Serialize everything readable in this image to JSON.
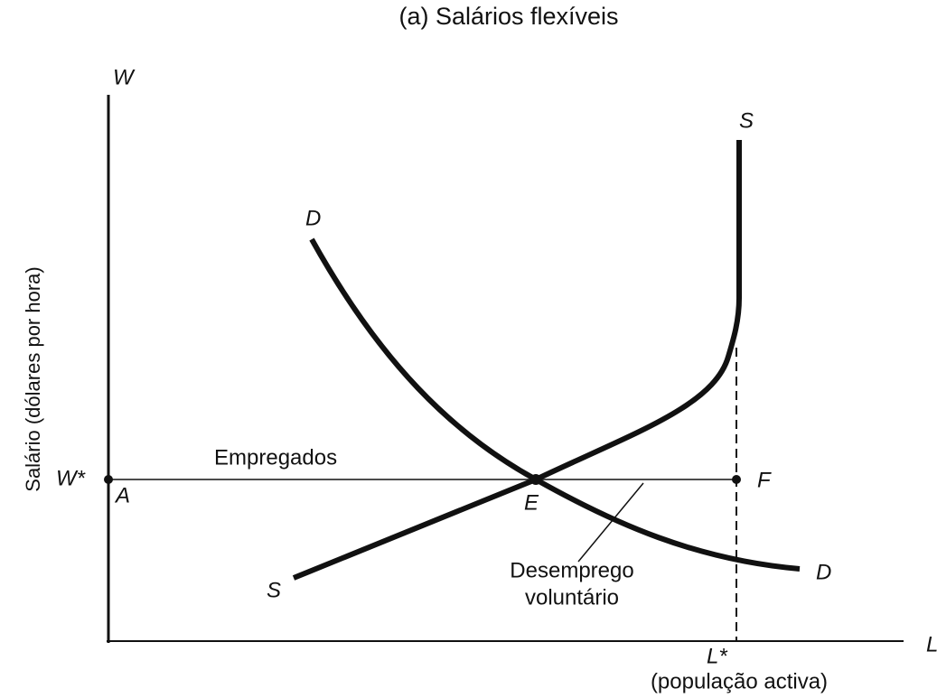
{
  "title": "(a) Salários flexíveis",
  "axes": {
    "y": "W",
    "x": "L",
    "y_label": "Salário (dólares por hora)"
  },
  "curves": {
    "supply_top": "S",
    "supply_bottom": "S",
    "demand_top": "D",
    "demand_right": "D"
  },
  "points": {
    "w_star": "W*",
    "a": "A",
    "e": "E",
    "f": "F",
    "l_star": "L*"
  },
  "annotations": {
    "employed": "Empregados",
    "unemployed": [
      "Desemprego",
      "voluntário"
    ],
    "labor_force": "(população activa)"
  }
}
